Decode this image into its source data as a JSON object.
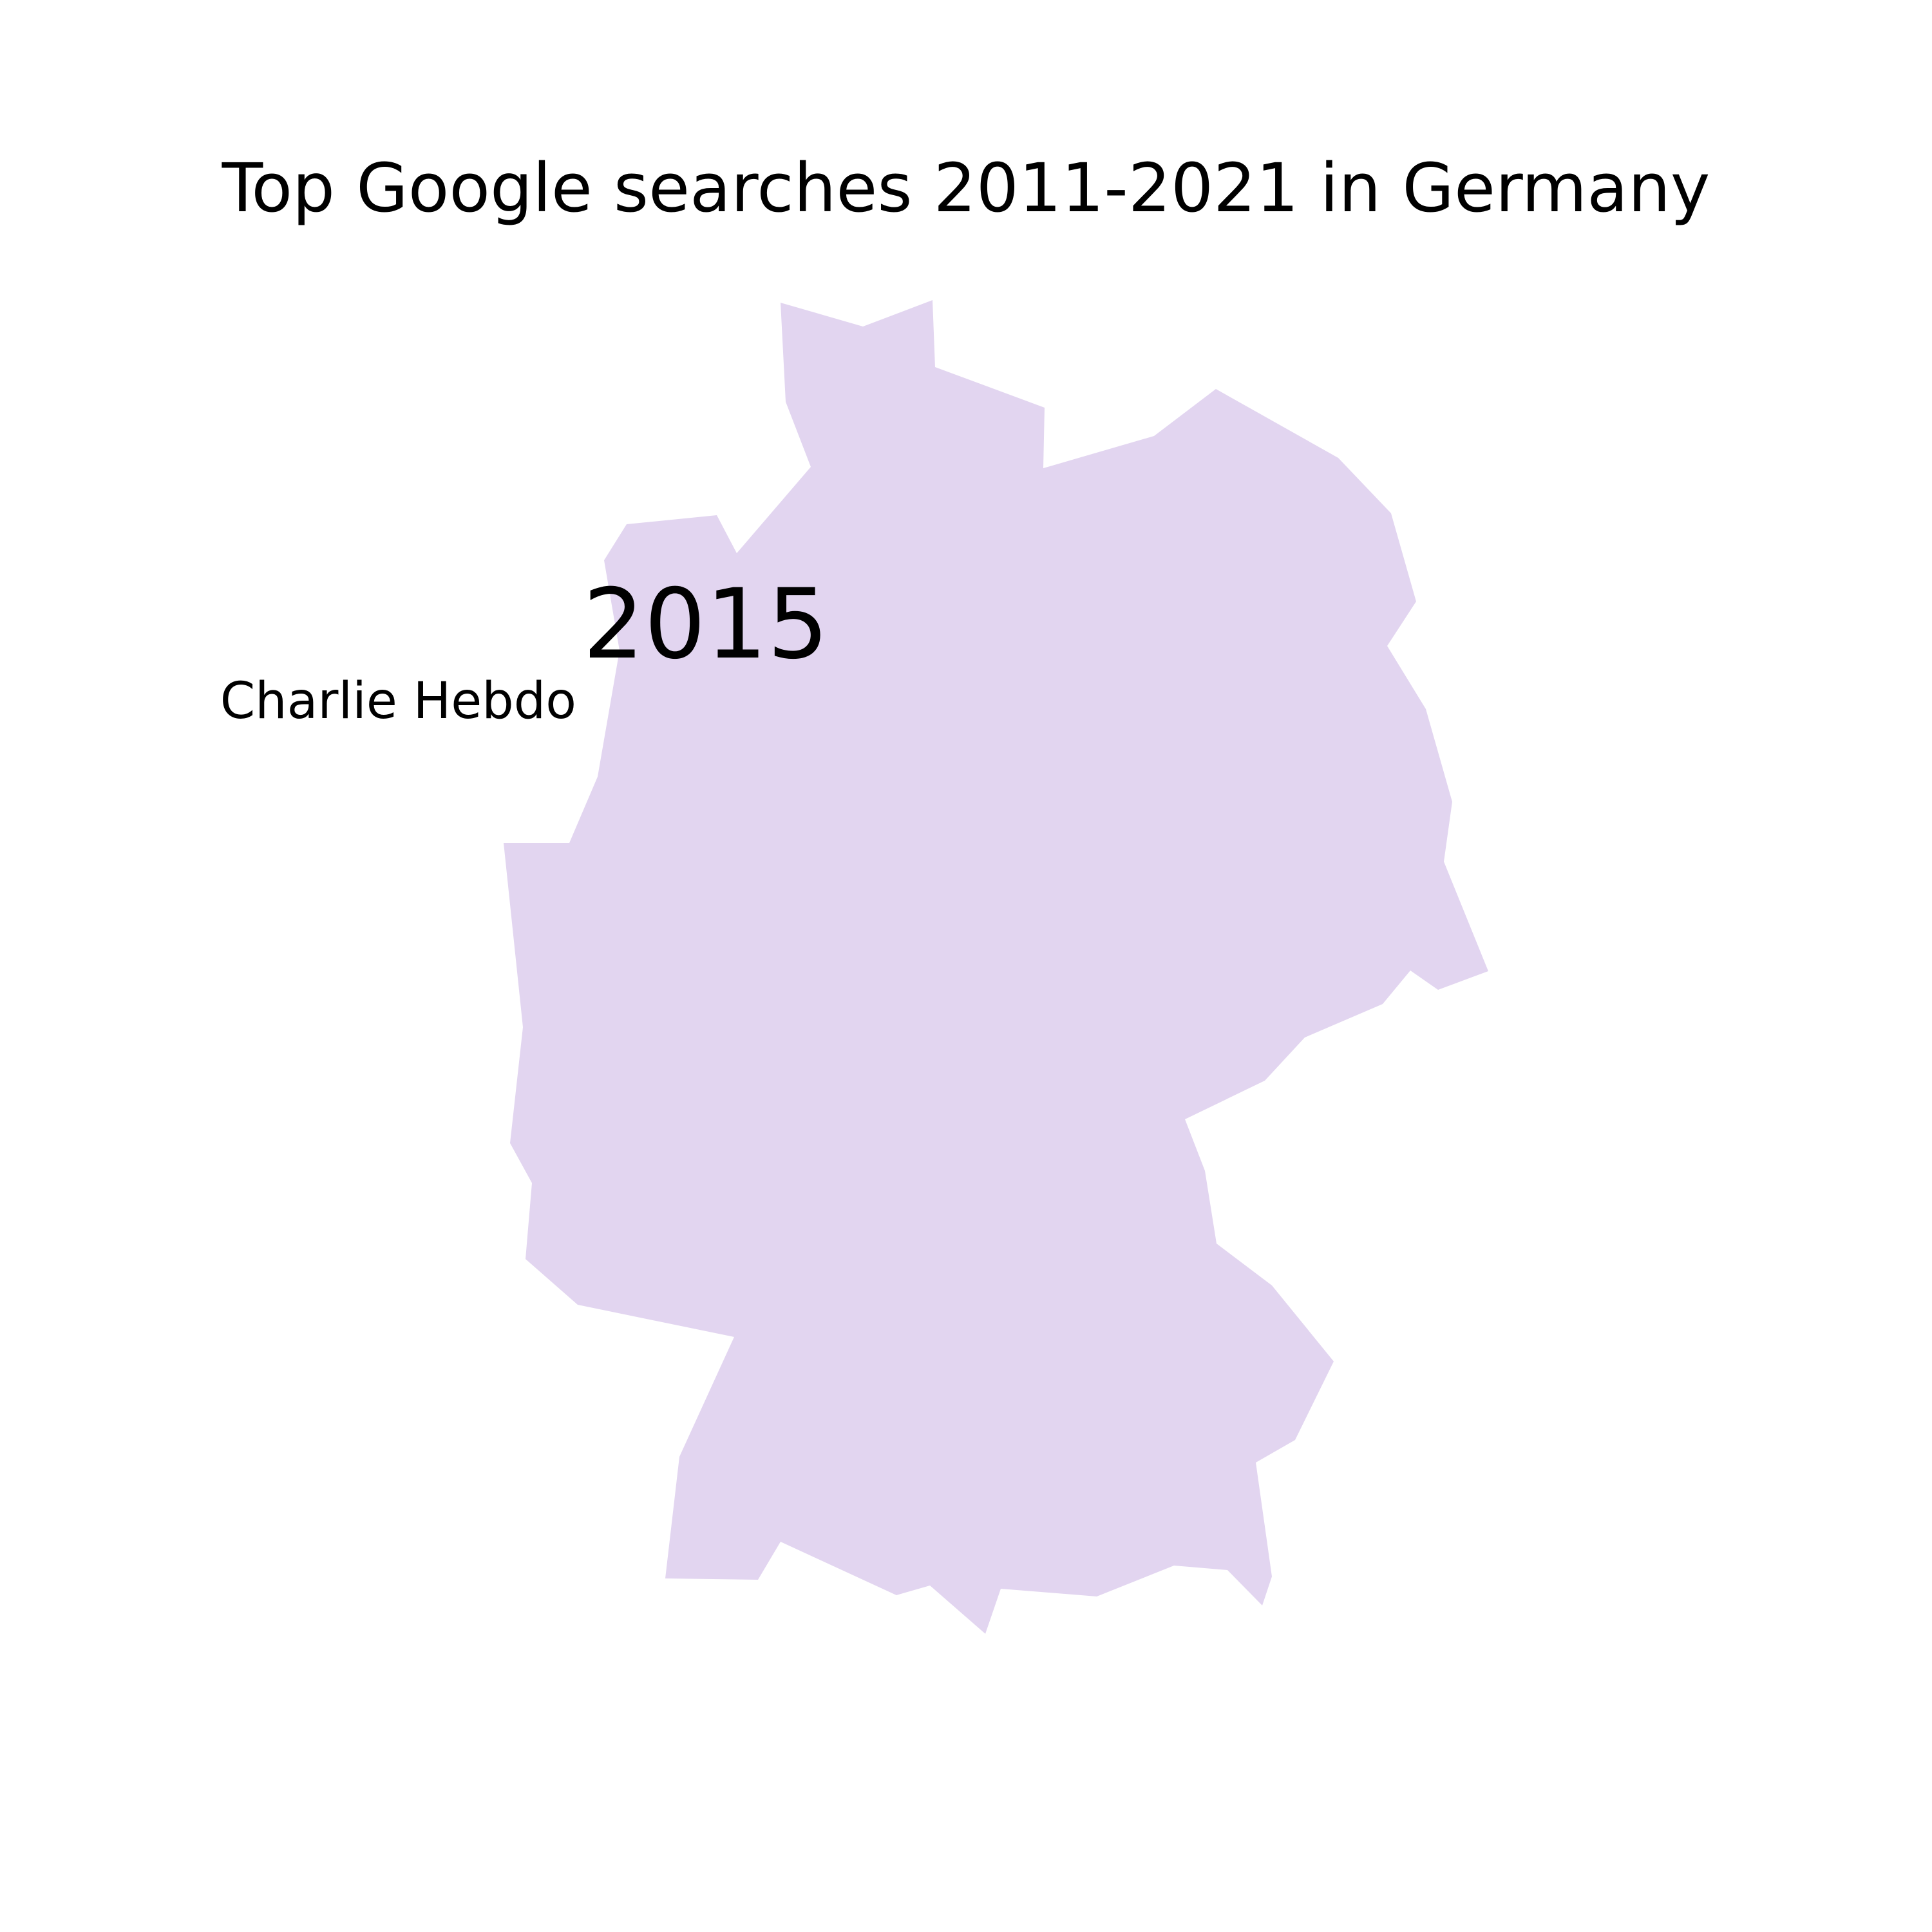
{
  "title": "Top Google searches 2011-2021 in Germany",
  "year": "2015",
  "top_search": "Charlie Hebdo",
  "colors": {
    "background": "#ffffff",
    "country_fill": "#e2d5f0",
    "text": "#000000"
  }
}
